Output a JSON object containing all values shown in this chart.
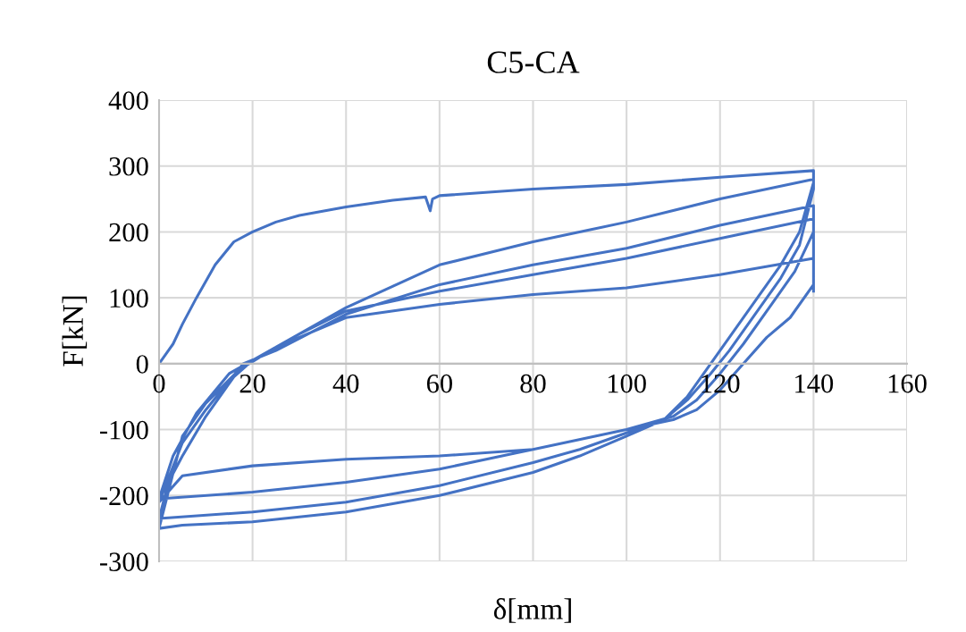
{
  "chart_data": {
    "type": "line",
    "title": "C5-CA",
    "xlabel": "δ[mm]",
    "ylabel": "F[kN]",
    "x": [
      0,
      2,
      3,
      5,
      8,
      12,
      16,
      20,
      25,
      30,
      40,
      50,
      57,
      58,
      58.5,
      60,
      80,
      100,
      120,
      140,
      140,
      137,
      133,
      128,
      122,
      118,
      113,
      108,
      100,
      90,
      80,
      60,
      40,
      20,
      5,
      0,
      5,
      10,
      17,
      25,
      40,
      60,
      80,
      100,
      120,
      140,
      140,
      137,
      133,
      128,
      122,
      118,
      113,
      108,
      100,
      90,
      80,
      60,
      40,
      20,
      0,
      2,
      5,
      10,
      16,
      20,
      30,
      40,
      60,
      80,
      100,
      120,
      140,
      140,
      135,
      130,
      125,
      120,
      115,
      110,
      100,
      80,
      60,
      40,
      20,
      5,
      0,
      5,
      10,
      18,
      25,
      40,
      60,
      80,
      100,
      120,
      140,
      140,
      136,
      131,
      125,
      120,
      115,
      110,
      100,
      80,
      60,
      40,
      20,
      0,
      3,
      8,
      15,
      20,
      30,
      40,
      60,
      80,
      100,
      120,
      140,
      140
    ],
    "series": [
      {
        "color": "#4472c4",
        "values": [
          0,
          20,
          30,
          60,
          100,
          150,
          185,
          200,
          215,
          225,
          238,
          248,
          253,
          232,
          250,
          255,
          265,
          272,
          283,
          293,
          275,
          200,
          150,
          100,
          40,
          0,
          -50,
          -85,
          -110,
          -140,
          -165,
          -200,
          -225,
          -240,
          -245,
          -250,
          -110,
          -60,
          -10,
          25,
          85,
          150,
          185,
          215,
          250,
          280,
          265,
          180,
          130,
          80,
          20,
          -15,
          -55,
          -85,
          -105,
          -130,
          -150,
          -185,
          -210,
          -225,
          -235,
          -180,
          -140,
          -80,
          -20,
          5,
          40,
          70,
          90,
          105,
          115,
          135,
          160,
          120,
          70,
          40,
          0,
          -40,
          -70,
          -85,
          -100,
          -130,
          -140,
          -145,
          -155,
          -170,
          -210,
          -120,
          -70,
          0,
          20,
          75,
          120,
          150,
          175,
          210,
          240,
          200,
          140,
          90,
          30,
          -15,
          -55,
          -80,
          -100,
          -130,
          -160,
          -180,
          -195,
          -205,
          -140,
          -75,
          -15,
          5,
          45,
          80,
          110,
          135,
          160,
          190,
          220,
          110
        ]
      }
    ],
    "xlim": [
      0,
      160
    ],
    "xticks": [
      0,
      20,
      40,
      60,
      80,
      100,
      120,
      140,
      160
    ],
    "ylim": [
      -300,
      400
    ],
    "yticks": [
      -300,
      -200,
      -100,
      0,
      100,
      200,
      300,
      400
    ],
    "grid": true,
    "marker": "none",
    "line_style": "solid",
    "legend": false
  }
}
